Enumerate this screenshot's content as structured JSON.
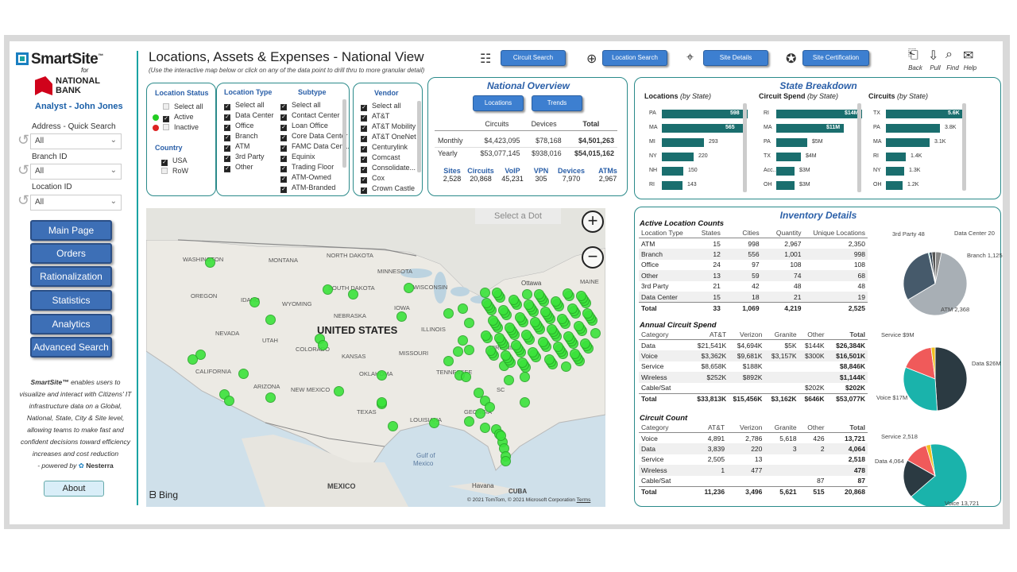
{
  "brand": {
    "name": "SmartSite",
    "tm": "™",
    "for": "for",
    "bank_line1": "NATIONAL",
    "bank_line2": "BANK",
    "analyst": "Analyst - John Jones"
  },
  "filters": {
    "address_label": "Address - Quick Search",
    "address_value": "All",
    "branch_label": "Branch ID",
    "branch_value": "All",
    "location_label": "Location ID",
    "location_value": "All"
  },
  "nav": [
    "Main Page",
    "Orders",
    "Rationalization",
    "Statistics",
    "Analytics",
    "Advanced Search"
  ],
  "blurb": {
    "bold": "SmartSite™",
    "text": " enables users to visualize and interact with Citizens' IT infrastructure data on a Global, National, State, City & Site level, allowing teams to make fast and confident decisions toward efficiency increases and cost reduction",
    "powered": "- powered by",
    "vendor": "Nesterra"
  },
  "about": "About",
  "header": {
    "title": "Locations, Assets & Expenses - National View",
    "subtitle": "(Use the interactive map below or click on any of the data point to drill thru to more granular detail)"
  },
  "toolbar": {
    "circuit": "Circuit Search",
    "location": "Location Search",
    "site": "Site Details",
    "cert": "Site Certification",
    "back": "Back",
    "pull": "Pull",
    "find": "Find",
    "help": "Help"
  },
  "slicers": {
    "status_title": "Location Status",
    "status": [
      {
        "label": "Select all",
        "state": "dis"
      },
      {
        "label": "Active",
        "state": "on"
      },
      {
        "label": "Inactive",
        "state": "off"
      }
    ],
    "country_title": "Country",
    "country": [
      {
        "label": "USA",
        "state": "on"
      },
      {
        "label": "RoW",
        "state": "off"
      }
    ],
    "type_title": "Location Type",
    "types": [
      "Select all",
      "Data Center",
      "Office",
      "Branch",
      "ATM",
      "3rd Party",
      "Other"
    ],
    "subtype_title": "Subtype",
    "subtypes": [
      "Select all",
      "Contact Center",
      "Loan Office",
      "Core Data Center",
      "FAMC Data Cent...",
      "Equinix",
      "Trading Floor",
      "ATM-Owned",
      "ATM-Branded"
    ],
    "vendor_title": "Vendor",
    "vendors": [
      "Select all",
      "AT&T",
      "AT&T Mobility",
      "AT&T OneNet",
      "Centurylink",
      "Comcast",
      "Consolidate...",
      "Cox",
      "Crown Castle"
    ]
  },
  "overview": {
    "title": "National Overview",
    "btn_locations": "Locations",
    "btn_trends": "Trends",
    "cols": [
      "Circuits",
      "Devices",
      "Total"
    ],
    "rows": [
      {
        "label": "Monthly",
        "circuits": "$4,423,095",
        "devices": "$78,168",
        "total": "$4,501,263"
      },
      {
        "label": "Yearly",
        "circuits": "$53,077,145",
        "devices": "$938,016",
        "total": "$54,015,162"
      }
    ],
    "stats": [
      {
        "h": "Sites",
        "v": "2,528"
      },
      {
        "h": "Circuits",
        "v": "20,868"
      },
      {
        "h": "VoIP",
        "v": "45,231"
      },
      {
        "h": "VPN",
        "v": "305"
      },
      {
        "h": "Devices",
        "v": "7,970"
      },
      {
        "h": "ATMs",
        "v": "2,967"
      }
    ]
  },
  "state": {
    "title": "State Breakdown",
    "loc": {
      "t1": "Locations",
      "t2": "(by State)",
      "rows": [
        {
          "s": "PA",
          "v": 598,
          "l": "598"
        },
        {
          "s": "MA",
          "v": 565,
          "l": "565"
        },
        {
          "s": "MI",
          "v": 293,
          "l": "293"
        },
        {
          "s": "NY",
          "v": 220,
          "l": "220"
        },
        {
          "s": "NH",
          "v": 150,
          "l": "150"
        },
        {
          "s": "RI",
          "v": 143,
          "l": "143"
        }
      ]
    },
    "spend": {
      "t1": "Circuit Spend",
      "t2": "(by State)",
      "rows": [
        {
          "s": "RI",
          "v": 14,
          "l": "$14M"
        },
        {
          "s": "MA",
          "v": 11,
          "l": "$11M"
        },
        {
          "s": "PA",
          "v": 5,
          "l": "$5M"
        },
        {
          "s": "TX",
          "v": 4,
          "l": "$4M"
        },
        {
          "s": "Acc...",
          "v": 3,
          "l": "$3M"
        },
        {
          "s": "OH",
          "v": 3,
          "l": "$3M"
        }
      ]
    },
    "circ": {
      "t1": "Circuits",
      "t2": "(by State)",
      "rows": [
        {
          "s": "TX",
          "v": 5.6,
          "l": "5.6K"
        },
        {
          "s": "PA",
          "v": 3.8,
          "l": "3.8K"
        },
        {
          "s": "MA",
          "v": 3.1,
          "l": "3.1K"
        },
        {
          "s": "RI",
          "v": 1.4,
          "l": "1.4K"
        },
        {
          "s": "NY",
          "v": 1.3,
          "l": "1.3K"
        },
        {
          "s": "OH",
          "v": 1.2,
          "l": "1.2K"
        }
      ]
    }
  },
  "map": {
    "select_dot": "Select a Dot",
    "country": "UNITED STATES",
    "mexico": "MEXICO",
    "cuba": "CUBA",
    "havana": "Havana",
    "gulf1": "Gulf of",
    "gulf2": "Mexico",
    "ottawa": "Ottawa",
    "bing": "Bing",
    "copy": "© 2021 TomTom, © 2021 Microsoft Corporation",
    "terms": "Terms",
    "states": [
      [
        "WASHINGTON",
        230,
        322
      ],
      [
        "MONTANA",
        338,
        323
      ],
      [
        "NORTH DAKOTA",
        411,
        317
      ],
      [
        "MINNESOTA",
        475,
        337
      ],
      [
        "SOUTH DAKOTA",
        413,
        358
      ],
      [
        "WISCONSIN",
        520,
        357
      ],
      [
        "OREGON",
        240,
        368
      ],
      [
        "IDAHO",
        303,
        373
      ],
      [
        "WYOMING",
        355,
        378
      ],
      [
        "IOWA",
        496,
        383
      ],
      [
        "NEBRASKA",
        420,
        393
      ],
      [
        "NEVADA",
        271,
        415
      ],
      [
        "UTAH",
        330,
        424
      ],
      [
        "ILLINOIS",
        530,
        410
      ],
      [
        "COLORADO",
        372,
        435
      ],
      [
        "KANSAS",
        430,
        444
      ],
      [
        "MISSOURI",
        502,
        440
      ],
      [
        "CALIFORNIA",
        246,
        463
      ],
      [
        "ARIZONA",
        319,
        482
      ],
      [
        "NEW MEXICO",
        366,
        486
      ],
      [
        "OKLAHOMA",
        452,
        466
      ],
      [
        "TEXAS",
        449,
        514
      ],
      [
        "LOUISIANA",
        516,
        524
      ],
      [
        "GEORGIA",
        584,
        514
      ],
      [
        "TENNESSEE",
        549,
        464
      ],
      [
        "VIRGINIA",
        616,
        433
      ],
      [
        "SC",
        625,
        486
      ],
      [
        "MAINE",
        730,
        350
      ]
    ]
  },
  "inventory": {
    "title": "Inventory Details",
    "active": {
      "title": "Active Location Counts",
      "cols": [
        "Location Type",
        "States",
        "Cities",
        "Quantity",
        "Unique Locations"
      ],
      "rows": [
        [
          "ATM",
          "15",
          "998",
          "2,967",
          "2,350"
        ],
        [
          "Branch",
          "12",
          "556",
          "1,001",
          "998"
        ],
        [
          "Office",
          "24",
          "97",
          "108",
          "108"
        ],
        [
          "Other",
          "13",
          "59",
          "74",
          "68"
        ],
        [
          "3rd Party",
          "21",
          "42",
          "48",
          "48"
        ],
        [
          "Data Center",
          "15",
          "18",
          "21",
          "19"
        ]
      ],
      "total": [
        "Total",
        "33",
        "1,069",
        "4,219",
        "2,525"
      ]
    },
    "annual": {
      "title": "Annual Circuit Spend",
      "cols": [
        "Category",
        "AT&T",
        "Verizon",
        "Granite",
        "Other",
        "Total"
      ],
      "rows": [
        [
          "Data",
          "$21,541K",
          "$4,694K",
          "$5K",
          "$144K",
          "$26,384K"
        ],
        [
          "Voice",
          "$3,362K",
          "$9,681K",
          "$3,157K",
          "$300K",
          "$16,501K"
        ],
        [
          "Service",
          "$8,658K",
          "$188K",
          "",
          "",
          "$8,846K"
        ],
        [
          "Wireless",
          "$252K",
          "$892K",
          "",
          "",
          "$1,144K"
        ],
        [
          "Cable/Sat",
          "",
          "",
          "",
          "$202K",
          "$202K"
        ]
      ],
      "total": [
        "Total",
        "$33,813K",
        "$15,456K",
        "$3,162K",
        "$646K",
        "$53,077K"
      ]
    },
    "count": {
      "title": "Circuit Count",
      "cols": [
        "Category",
        "AT&T",
        "Verizon",
        "Granite",
        "Other",
        "Total"
      ],
      "rows": [
        [
          "Voice",
          "4,891",
          "2,786",
          "5,618",
          "426",
          "13,721"
        ],
        [
          "Data",
          "3,839",
          "220",
          "3",
          "2",
          "4,064"
        ],
        [
          "Service",
          "2,505",
          "13",
          "",
          "",
          "2,518"
        ],
        [
          "Wireless",
          "1",
          "477",
          "",
          "",
          "478"
        ],
        [
          "Cable/Sat",
          "",
          "",
          "",
          "87",
          "87"
        ]
      ],
      "total": [
        "Total",
        "11,236",
        "3,496",
        "5,621",
        "515",
        "20,868"
      ]
    }
  },
  "chart_data": [
    {
      "type": "bar",
      "title": "Locations (by State)",
      "categories": [
        "PA",
        "MA",
        "MI",
        "NY",
        "NH",
        "RI"
      ],
      "values": [
        598,
        565,
        293,
        220,
        150,
        143
      ]
    },
    {
      "type": "bar",
      "title": "Circuit Spend (by State)",
      "categories": [
        "RI",
        "MA",
        "PA",
        "TX",
        "Acc...",
        "OH"
      ],
      "values": [
        14,
        11,
        5,
        4,
        3,
        3
      ]
    },
    {
      "type": "bar",
      "title": "Circuits (by State)",
      "categories": [
        "TX",
        "PA",
        "MA",
        "RI",
        "NY",
        "OH"
      ],
      "values": [
        5.6,
        3.8,
        3.1,
        1.4,
        1.3,
        1.2
      ]
    },
    {
      "type": "pie",
      "categories": [
        "ATM",
        "Branch",
        "Data Center",
        "3rd Party",
        "Other",
        "Office"
      ],
      "values": [
        2368,
        1125,
        20,
        48,
        74,
        108
      ],
      "labels": [
        "ATM 2,368",
        "Branch 1,125",
        "Data Center 20",
        "3rd Party 48"
      ],
      "colors": [
        "#a8afb5",
        "#465a6b",
        "#1aa3a3",
        "#2b3a4a",
        "#555",
        "#888"
      ]
    },
    {
      "type": "pie",
      "categories": [
        "Data",
        "Voice",
        "Service",
        "Wireless"
      ],
      "values": [
        26,
        17,
        9,
        1.1
      ],
      "labels": [
        "Data $26M",
        "Voice $17M",
        "Service $9M"
      ],
      "colors": [
        "#2b3a42",
        "#1ab3ab",
        "#f05a5a",
        "#f0c020"
      ]
    },
    {
      "type": "pie",
      "categories": [
        "Voice",
        "Data",
        "Service",
        "Wireless"
      ],
      "values": [
        13721,
        4064,
        2518,
        478
      ],
      "labels": [
        "Voice 13,721",
        "Data 4,064",
        "Service 2,518"
      ],
      "colors": [
        "#1ab3ab",
        "#2b3a42",
        "#f05a5a",
        "#f0c020"
      ]
    }
  ],
  "colors": {
    "accent": "#1aa3a3",
    "button": "#3d6fb6",
    "dot": "#22dd22",
    "bar": "#1a6e6e"
  }
}
